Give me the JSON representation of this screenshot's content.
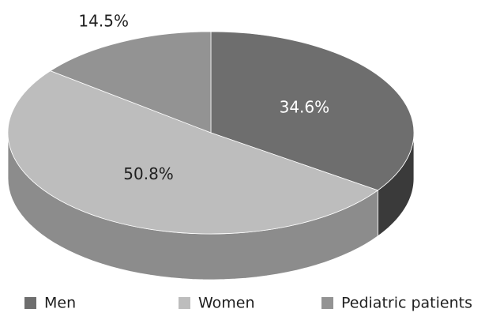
{
  "chart_data": {
    "type": "pie",
    "style": "3d",
    "title": "",
    "categories": [
      "Men",
      "Women",
      "Pediatric patients"
    ],
    "values": [
      34.6,
      50.8,
      14.5
    ],
    "data_labels": [
      "34.6%",
      "50.8%",
      "14.5%"
    ],
    "colors": [
      "#6e6e6e",
      "#bdbdbd",
      "#939393"
    ],
    "side_colors": [
      "#3a3a3a",
      "#8c8c8c",
      "#6a6a6a"
    ],
    "label_colors": [
      "#ffffff",
      "#1f1f1f",
      "#1f1f1f"
    ],
    "start": "12 o'clock",
    "direction": "clockwise",
    "legend": {
      "position": "bottom",
      "items": [
        "Men",
        "Women",
        "Pediatric patients"
      ]
    }
  }
}
